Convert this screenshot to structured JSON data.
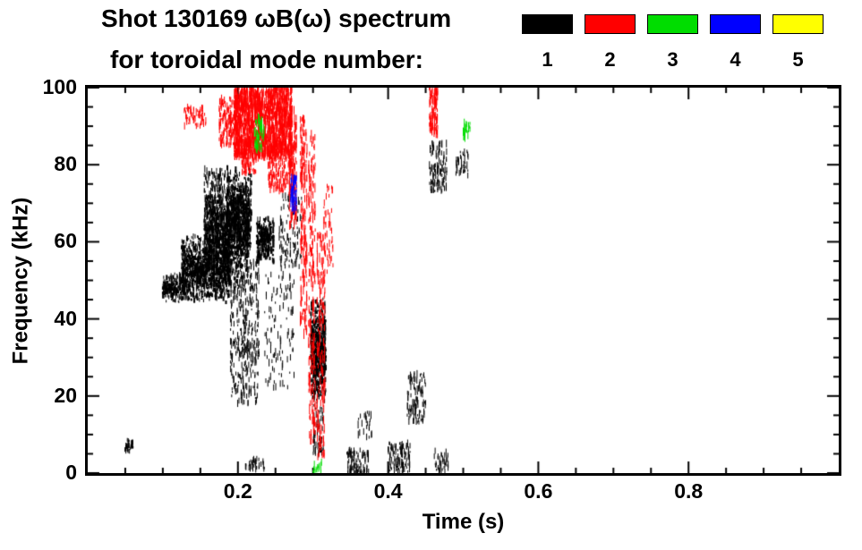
{
  "chart_data": {
    "type": "scatter",
    "title": "Shot 130169 ωB(ω) spectrum",
    "subtitle": "for toroidal mode number:",
    "xlabel": "Time (s)",
    "ylabel": "Frequency (kHz)",
    "xlim": [
      0.0,
      1.0
    ],
    "ylim": [
      0,
      100
    ],
    "xticks": {
      "values": [
        0.2,
        0.4,
        0.6,
        0.8
      ],
      "labels": [
        "0.2",
        "0.4",
        "0.6",
        "0.8"
      ]
    },
    "yticks": {
      "values": [
        0,
        20,
        40,
        60,
        80,
        100
      ],
      "labels": [
        "0",
        "20",
        "40",
        "60",
        "80",
        "100"
      ]
    },
    "x_minor_step": 0.05,
    "y_minor_step": 5,
    "legend": [
      {
        "label": "1",
        "color": "#000000"
      },
      {
        "label": "2",
        "color": "#ff0000"
      },
      {
        "label": "3",
        "color": "#00dd00"
      },
      {
        "label": "4",
        "color": "#0000ff"
      },
      {
        "label": "5",
        "color": "#ffff00"
      }
    ],
    "series": [
      {
        "name": "toroidal mode 1",
        "mode": 1,
        "color": "#000000",
        "blobs": [
          {
            "x": [
              0.125,
              0.19
            ],
            "y": [
              44,
              62
            ],
            "n": 1100,
            "k": "b"
          },
          {
            "x": [
              0.155,
              0.215
            ],
            "y": [
              50,
              74
            ],
            "n": 1000,
            "k": "b"
          },
          {
            "x": [
              0.185,
              0.218
            ],
            "y": [
              55,
              80
            ],
            "n": 550,
            "k": "b"
          },
          {
            "x": [
              0.1,
              0.13
            ],
            "y": [
              44,
              52
            ],
            "n": 220,
            "k": "b"
          },
          {
            "x": [
              0.19,
              0.228
            ],
            "y": [
              18,
              55
            ],
            "n": 380,
            "k": "s"
          },
          {
            "x": [
              0.225,
              0.248
            ],
            "y": [
              54,
              67
            ],
            "n": 300,
            "k": "b"
          },
          {
            "x": [
              0.155,
              0.19
            ],
            "y": [
              62,
              79
            ],
            "n": 260,
            "k": "s"
          },
          {
            "x": [
              0.235,
              0.275
            ],
            "y": [
              22,
              52
            ],
            "n": 110,
            "k": "s"
          },
          {
            "x": [
              0.255,
              0.285
            ],
            "y": [
              53,
              72
            ],
            "n": 110,
            "k": "s"
          },
          {
            "x": [
              0.297,
              0.317
            ],
            "y": [
              17,
              46
            ],
            "n": 600,
            "k": "b"
          },
          {
            "x": [
              0.3,
              0.315
            ],
            "y": [
              5,
              17
            ],
            "n": 60,
            "k": "s"
          },
          {
            "x": [
              0.345,
              0.375
            ],
            "y": [
              0,
              6
            ],
            "n": 90,
            "k": "s"
          },
          {
            "x": [
              0.4,
              0.43
            ],
            "y": [
              0,
              8
            ],
            "n": 110,
            "k": "s"
          },
          {
            "x": [
              0.425,
              0.45
            ],
            "y": [
              13,
              26
            ],
            "n": 110,
            "k": "s"
          },
          {
            "x": [
              0.455,
              0.478
            ],
            "y": [
              73,
              86
            ],
            "n": 110,
            "k": "s"
          },
          {
            "x": [
              0.49,
              0.507
            ],
            "y": [
              77,
              84
            ],
            "n": 40,
            "k": "s"
          },
          {
            "x": [
              0.048,
              0.06
            ],
            "y": [
              5,
              9
            ],
            "n": 30,
            "k": "b"
          },
          {
            "x": [
              0.21,
              0.24
            ],
            "y": [
              1,
              4
            ],
            "n": 35,
            "k": "s"
          },
          {
            "x": [
              0.46,
              0.48
            ],
            "y": [
              0,
              6
            ],
            "n": 40,
            "k": "s"
          },
          {
            "x": [
              0.36,
              0.38
            ],
            "y": [
              9,
              16
            ],
            "n": 25,
            "k": "s"
          }
        ]
      },
      {
        "name": "toroidal mode 2",
        "mode": 2,
        "color": "#ff0000",
        "blobs": [
          {
            "x": [
              0.195,
              0.272
            ],
            "y": [
              82,
              100
            ],
            "n": 1500,
            "k": "c"
          },
          {
            "x": [
              0.175,
              0.2
            ],
            "y": [
              85,
              98
            ],
            "n": 180,
            "k": "s"
          },
          {
            "x": [
              0.128,
              0.158
            ],
            "y": [
              90,
              95
            ],
            "n": 60,
            "k": "s"
          },
          {
            "x": [
              0.24,
              0.275
            ],
            "y": [
              73,
              86
            ],
            "n": 200,
            "k": "s"
          },
          {
            "x": [
              0.205,
              0.225
            ],
            "y": [
              78,
              84
            ],
            "n": 80,
            "k": "s"
          },
          {
            "x": [
              0.268,
              0.278
            ],
            "y": [
              64,
              95
            ],
            "n": 130,
            "k": "c"
          },
          {
            "x": [
              0.283,
              0.292
            ],
            "y": [
              36,
              92
            ],
            "n": 170,
            "k": "c"
          },
          {
            "x": [
              0.294,
              0.303
            ],
            "y": [
              8,
              88
            ],
            "n": 190,
            "k": "c"
          },
          {
            "x": [
              0.305,
              0.316
            ],
            "y": [
              4,
              62
            ],
            "n": 160,
            "k": "c"
          },
          {
            "x": [
              0.313,
              0.328
            ],
            "y": [
              52,
              75
            ],
            "n": 50,
            "k": "s"
          },
          {
            "x": [
              0.455,
              0.466
            ],
            "y": [
              88,
              100
            ],
            "n": 90,
            "k": "c"
          }
        ]
      },
      {
        "name": "toroidal mode 3",
        "mode": 3,
        "color": "#00dd00",
        "blobs": [
          {
            "x": [
              0.222,
              0.235
            ],
            "y": [
              84,
              92
            ],
            "n": 45,
            "k": "c"
          },
          {
            "x": [
              0.3,
              0.312
            ],
            "y": [
              0,
              3
            ],
            "n": 15,
            "k": "s"
          },
          {
            "x": [
              0.5,
              0.509
            ],
            "y": [
              87,
              91
            ],
            "n": 22,
            "k": "c"
          }
        ]
      },
      {
        "name": "toroidal mode 4",
        "mode": 4,
        "color": "#0000ff",
        "blobs": [
          {
            "x": [
              0.27,
              0.278
            ],
            "y": [
              68,
              77
            ],
            "n": 45,
            "k": "c"
          }
        ]
      },
      {
        "name": "toroidal mode 5",
        "mode": 5,
        "color": "#ffff00",
        "blobs": []
      }
    ]
  }
}
